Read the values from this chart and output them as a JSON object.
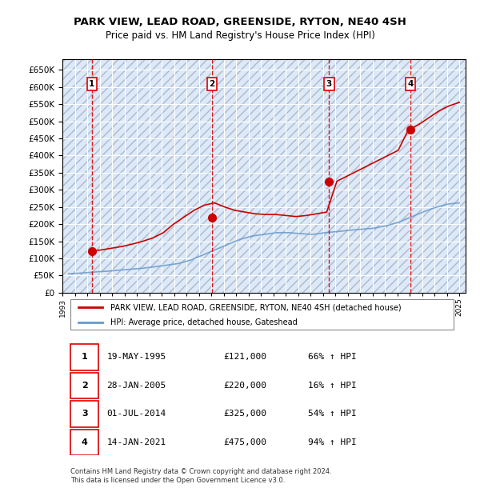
{
  "title": "PARK VIEW, LEAD ROAD, GREENSIDE, RYTON, NE40 4SH",
  "subtitle": "Price paid vs. HM Land Registry's House Price Index (HPI)",
  "ylabel": "",
  "ylim": [
    0,
    680000
  ],
  "yticks": [
    0,
    50000,
    100000,
    150000,
    200000,
    250000,
    300000,
    350000,
    400000,
    450000,
    500000,
    550000,
    600000,
    650000
  ],
  "xlim_start": 1993.0,
  "xlim_end": 2025.5,
  "background_color": "#ffffff",
  "plot_bg_color": "#dce9f8",
  "hatch_color": "#c0c0c0",
  "grid_color": "#ffffff",
  "sale_dates": [
    1995.38,
    2005.07,
    2014.5,
    2021.04
  ],
  "sale_prices": [
    121000,
    220000,
    325000,
    475000
  ],
  "sale_labels": [
    "1",
    "2",
    "3",
    "4"
  ],
  "red_line_color": "#cc0000",
  "blue_line_color": "#6699cc",
  "sale_marker_color": "#cc0000",
  "vline_color": "#dd0000",
  "legend_entries": [
    "PARK VIEW, LEAD ROAD, GREENSIDE, RYTON, NE40 4SH (detached house)",
    "HPI: Average price, detached house, Gateshead"
  ],
  "table_entries": [
    [
      "1",
      "19-MAY-1995",
      "£121,000",
      "66% ↑ HPI"
    ],
    [
      "2",
      "28-JAN-2005",
      "£220,000",
      "16% ↑ HPI"
    ],
    [
      "3",
      "01-JUL-2014",
      "£325,000",
      "54% ↑ HPI"
    ],
    [
      "4",
      "14-JAN-2021",
      "£475,000",
      "94% ↑ HPI"
    ]
  ],
  "footer": "Contains HM Land Registry data © Crown copyright and database right 2024.\nThis data is licensed under the Open Government Licence v3.0.",
  "hpi_base_values": [
    55000,
    57000,
    60000,
    62000,
    65000,
    68000,
    71000,
    75000,
    80000,
    85000,
    95000,
    110000,
    125000,
    140000,
    155000,
    165000,
    170000,
    175000,
    175000,
    172000,
    170000,
    175000,
    178000,
    182000,
    185000,
    188000,
    195000,
    205000,
    220000,
    235000,
    248000,
    258000,
    262000
  ],
  "red_line_values": [
    121000,
    125000,
    130000,
    135000,
    142000,
    150000,
    160000,
    175000,
    200000,
    220000,
    240000,
    255000,
    262000,
    250000,
    240000,
    235000,
    230000,
    228000,
    228000,
    225000,
    222000,
    225000,
    230000,
    235000,
    325000,
    340000,
    355000,
    370000,
    385000,
    400000,
    415000,
    475000,
    490000,
    510000,
    530000,
    545000,
    555000
  ],
  "red_line_years_start": 1995.38,
  "hpi_years_start": 1993.5
}
